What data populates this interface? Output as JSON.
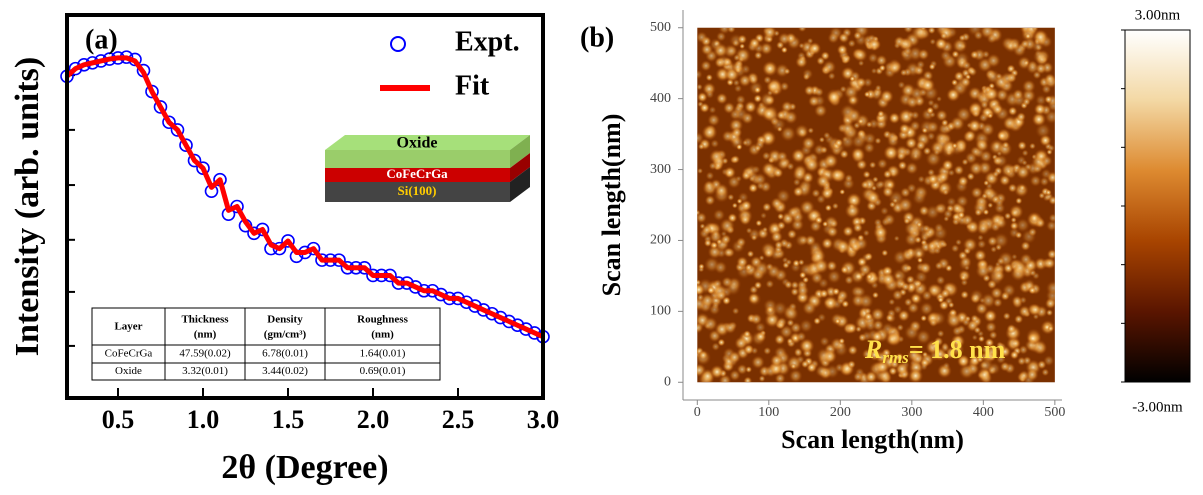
{
  "chart_data": [
    {
      "type": "line",
      "label": "(a)",
      "xlabel": "2θ (Degree)",
      "ylabel": "Intensity (arb. units)",
      "xlim": [
        0.2,
        3.0
      ],
      "ylim": [
        0,
        1
      ],
      "xticks": [
        0.5,
        {
          "value": 1,
          "label": "1.0"
        },
        1.5,
        {
          "value": 2,
          "label": "2.0"
        },
        2.5,
        {
          "value": 3,
          "label": "3.0"
        }
      ],
      "yticks": [
        0.136,
        0.277,
        0.413,
        0.556,
        0.7,
        0.843
      ],
      "x": [
        0.2,
        0.25,
        0.3,
        0.35,
        0.4,
        0.45,
        0.5,
        0.55,
        0.6,
        0.65,
        0.7,
        0.75,
        0.8,
        0.85,
        0.9,
        0.95,
        1.0,
        1.05,
        1.1,
        1.15,
        1.2,
        1.25,
        1.3,
        1.35,
        1.4,
        1.45,
        1.5,
        1.55,
        1.6,
        1.65,
        1.7,
        1.75,
        1.8,
        1.85,
        1.9,
        1.95,
        2.0,
        2.05,
        2.1,
        2.15,
        2.2,
        2.25,
        2.3,
        2.35,
        2.4,
        2.45,
        2.5,
        2.55,
        2.6,
        2.65,
        2.7,
        2.75,
        2.8,
        2.85,
        2.9,
        2.95,
        3.0
      ],
      "series": [
        {
          "name": "Expt.",
          "color": "#0000ff",
          "style": "markers",
          "values": [
            0.84,
            0.86,
            0.87,
            0.875,
            0.88,
            0.885,
            0.888,
            0.89,
            0.884,
            0.855,
            0.8,
            0.76,
            0.72,
            0.7,
            0.66,
            0.62,
            0.6,
            0.54,
            0.57,
            0.48,
            0.5,
            0.45,
            0.43,
            0.44,
            0.39,
            0.39,
            0.41,
            0.37,
            0.38,
            0.39,
            0.36,
            0.36,
            0.36,
            0.34,
            0.34,
            0.34,
            0.32,
            0.32,
            0.32,
            0.3,
            0.3,
            0.29,
            0.28,
            0.28,
            0.27,
            0.26,
            0.26,
            0.25,
            0.24,
            0.23,
            0.22,
            0.21,
            0.2,
            0.19,
            0.18,
            0.17,
            0.16
          ]
        },
        {
          "name": "Fit",
          "color": "#ff0000",
          "style": "line",
          "values": [
            0.84,
            0.86,
            0.87,
            0.875,
            0.88,
            0.885,
            0.888,
            0.888,
            0.88,
            0.85,
            0.8,
            0.76,
            0.72,
            0.7,
            0.66,
            0.62,
            0.6,
            0.55,
            0.57,
            0.49,
            0.5,
            0.46,
            0.43,
            0.44,
            0.4,
            0.39,
            0.41,
            0.38,
            0.38,
            0.39,
            0.36,
            0.36,
            0.36,
            0.34,
            0.34,
            0.34,
            0.32,
            0.32,
            0.32,
            0.3,
            0.3,
            0.29,
            0.28,
            0.28,
            0.27,
            0.26,
            0.26,
            0.25,
            0.24,
            0.23,
            0.22,
            0.21,
            0.2,
            0.19,
            0.18,
            0.17,
            0.16
          ]
        }
      ],
      "inset_layers": [
        "Oxide",
        "CoFeCrGa",
        "Si(100)"
      ],
      "table": {
        "header": [
          [
            "Layer"
          ],
          [
            "Thickness",
            "(nm)"
          ],
          [
            "Density",
            "(gm/cm³)"
          ],
          [
            "Roughness",
            "(nm)"
          ]
        ],
        "rows": [
          [
            "CoFeCrGa",
            "47.59(0.02)",
            "6.78(0.01)",
            "1.64(0.01)"
          ],
          [
            "Oxide",
            "3.32(0.01)",
            "3.44(0.02)",
            "0.69(0.01)"
          ]
        ]
      }
    },
    {
      "type": "image",
      "label": "(b)",
      "xlabel": "Scan length(nm)",
      "ylabel": "Scan length(nm)",
      "xlim": [
        -20,
        510
      ],
      "ylim": [
        -25,
        525
      ],
      "extent": [
        0,
        500,
        0,
        500
      ],
      "xticks": [
        0,
        100,
        200,
        300,
        400,
        500
      ],
      "yticks": [
        0,
        100,
        200,
        300,
        400,
        500
      ],
      "annotation": {
        "symbol": "R",
        "subscript": "rms",
        "text": "= 1.8 nm"
      },
      "colorbar": {
        "lim": [
          -3,
          3
        ],
        "ticks": [
          {
            "value": 3,
            "label": "3.00nm"
          },
          {
            "value": -3,
            "label": "-3.00nm"
          }
        ],
        "minor_ticks": [
          -2,
          -1,
          0,
          1,
          2
        ],
        "colormap": [
          "#000000",
          "#5a1500",
          "#a84400",
          "#dd8a30",
          "#f3d8a4",
          "#ffffff"
        ]
      }
    }
  ]
}
